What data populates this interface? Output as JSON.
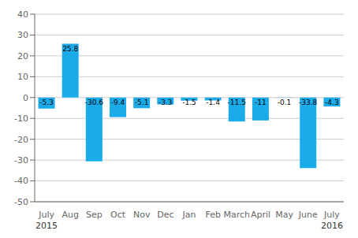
{
  "chart_data": {
    "type": "bar",
    "categories": [
      "July",
      "Aug",
      "Sep",
      "Oct",
      "Nov",
      "Dec",
      "Jan",
      "Feb",
      "March",
      "April",
      "May",
      "June",
      "July"
    ],
    "values": [
      -5.3,
      25.8,
      -30.6,
      -9.4,
      -5.1,
      -3.3,
      -1.5,
      -1.4,
      -11.5,
      -11.0,
      -0.1,
      -33.8,
      -4.3
    ],
    "color": "#1aacea",
    "ylim": [
      -50,
      40
    ],
    "yticks": [
      -50,
      -40,
      -30,
      -20,
      -10,
      0,
      10,
      20,
      30,
      40
    ],
    "grid": true,
    "data_labels": true,
    "annotations": [
      {
        "text": "2015",
        "x": 0
      },
      {
        "text": "2016",
        "x": 12
      }
    ]
  }
}
